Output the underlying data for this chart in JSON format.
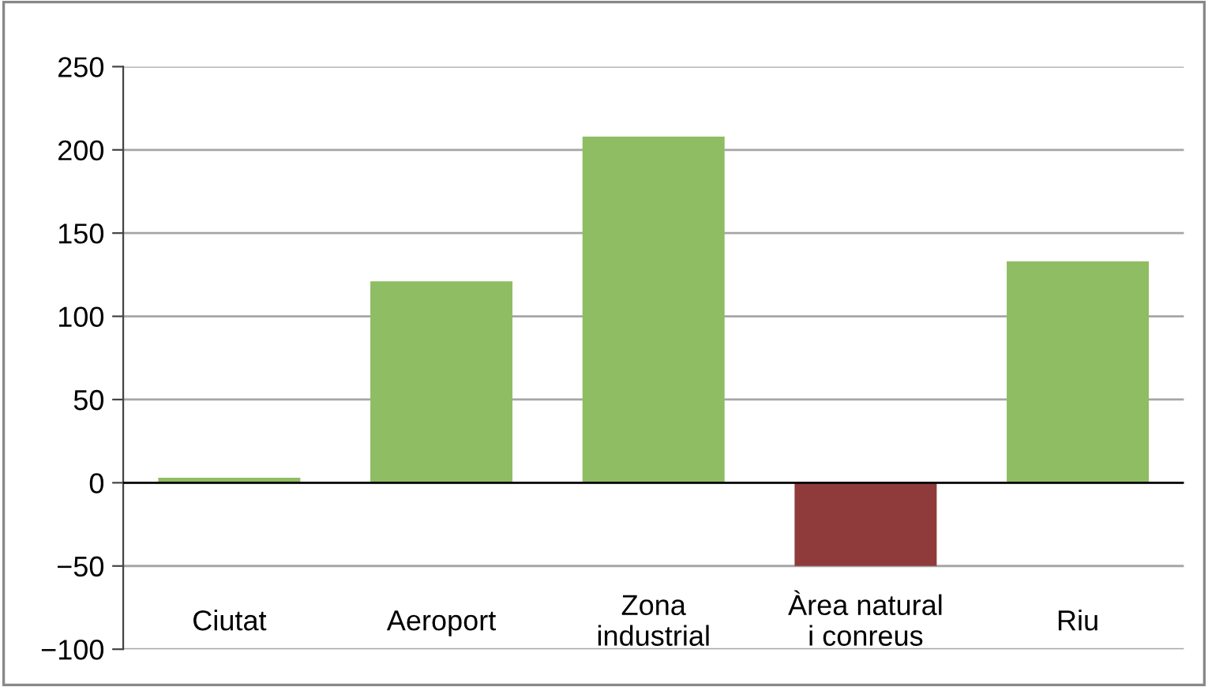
{
  "chart_data": {
    "type": "bar",
    "categories": [
      "Ciutat",
      "Aeroport",
      "Zona\nindustrial",
      "Àrea natural\ni conreus",
      "Riu"
    ],
    "values": [
      3,
      121,
      208,
      -50,
      133
    ],
    "colors": [
      "#8fbd63",
      "#8fbd63",
      "#8fbd63",
      "#8f3b3c",
      "#8fbd63"
    ],
    "ylim": [
      -100,
      250
    ],
    "yticks": [
      {
        "value": -100,
        "label": "−100"
      },
      {
        "value": -50,
        "label": "−50"
      },
      0,
      50,
      100,
      150,
      200,
      250
    ],
    "grid": "y"
  }
}
